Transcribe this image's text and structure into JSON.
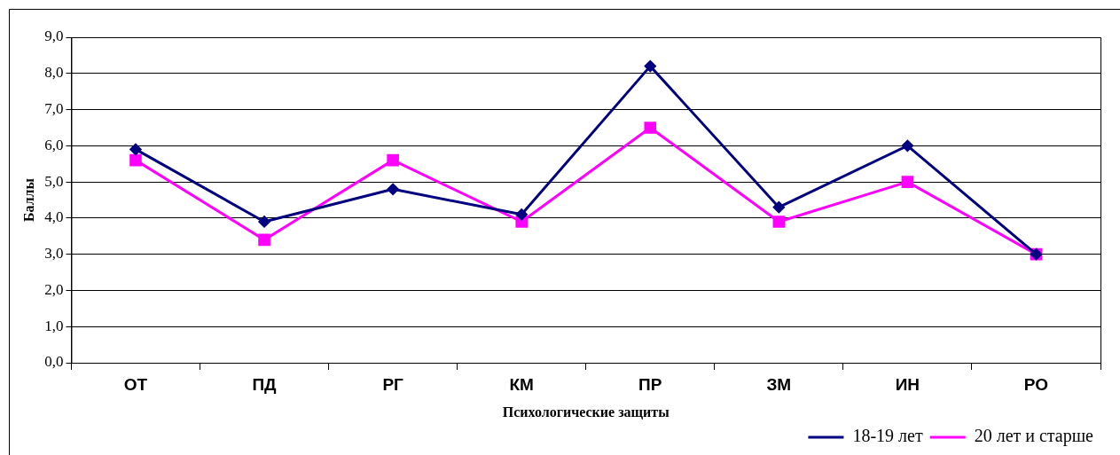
{
  "chart_data": {
    "type": "line",
    "xlabel": "Психологические защиты",
    "ylabel": "Баллы",
    "categories": [
      "ОТ",
      "ПД",
      "РГ",
      "КМ",
      "ПР",
      "ЗМ",
      "ИН",
      "РО"
    ],
    "series": [
      {
        "name": "18-19 лет",
        "color": "#000080",
        "marker": "diamond",
        "values": [
          5.9,
          3.9,
          4.8,
          4.1,
          8.2,
          4.3,
          6.0,
          3.0
        ]
      },
      {
        "name": "20 лет и старше",
        "color": "#ff00ff",
        "marker": "square",
        "values": [
          5.6,
          3.4,
          5.6,
          3.9,
          6.5,
          3.9,
          5.0,
          3.0
        ]
      }
    ],
    "ylim": [
      0,
      9
    ],
    "yticks": [
      {
        "value": 0,
        "label": "0,0"
      },
      {
        "value": 1,
        "label": "1,0"
      },
      {
        "value": 2,
        "label": "2,0"
      },
      {
        "value": 3,
        "label": "3,0"
      },
      {
        "value": 4,
        "label": "4,0"
      },
      {
        "value": 5,
        "label": "5,0"
      },
      {
        "value": 6,
        "label": "6,0"
      },
      {
        "value": 7,
        "label": "7,0"
      },
      {
        "value": 8,
        "label": "8,0"
      },
      {
        "value": 9,
        "label": "9,0"
      }
    ],
    "grid": "y",
    "legend": "bottom right",
    "line_style": "solid"
  }
}
